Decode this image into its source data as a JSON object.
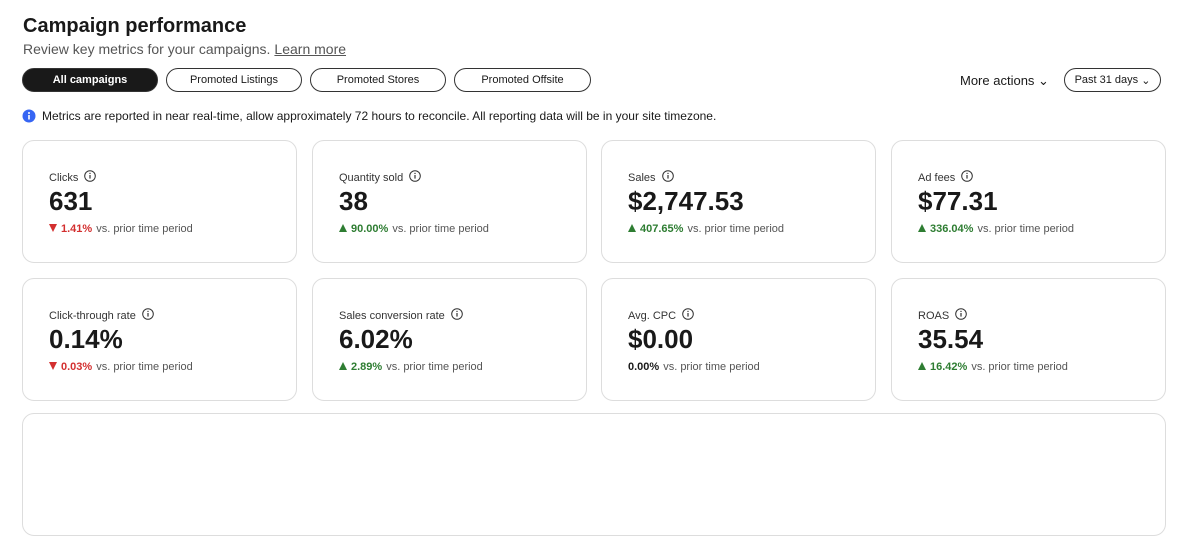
{
  "header": {
    "title": "Campaign performance",
    "subtitle": "Review key metrics for your campaigns.",
    "link": "Learn more"
  },
  "tabs": {
    "items": [
      "All campaigns",
      "Promoted Listings",
      "Promoted Stores",
      "Promoted Offsite"
    ],
    "selected": 0
  },
  "actions": {
    "more": "More actions",
    "period": "Past 31 days"
  },
  "notice": "Metrics are reported in near real-time, allow approximately 72 hours to reconcile. All reporting data will be in your site timezone.",
  "metrics": [
    {
      "label": "Clicks",
      "value": "631",
      "change": "1.41%",
      "direction": "down",
      "comparison": "vs. prior time period"
    },
    {
      "label": "Quantity sold",
      "value": "38",
      "change": "90.00%",
      "direction": "up",
      "comparison": "vs. prior time period"
    },
    {
      "label": "Sales",
      "value": "$2,747.53",
      "change": "407.65%",
      "direction": "up",
      "comparison": "vs. prior time period"
    },
    {
      "label": "Ad fees",
      "value": "$77.31",
      "change": "336.04%",
      "direction": "up",
      "comparison": "vs. prior time period"
    },
    {
      "label": "Click-through rate",
      "value": "0.14%",
      "change": "0.03%",
      "direction": "down",
      "comparison": "vs. prior time period"
    },
    {
      "label": "Sales conversion rate",
      "value": "6.02%",
      "change": "2.89%",
      "direction": "up",
      "comparison": "vs. prior time period"
    },
    {
      "label": "Avg. CPC",
      "value": "$0.00",
      "change": "0.00%",
      "direction": null,
      "comparison": "vs. prior time period"
    },
    {
      "label": "ROAS",
      "value": "35.54",
      "change": "16.42%",
      "direction": "up",
      "comparison": "vs. prior time period"
    }
  ]
}
